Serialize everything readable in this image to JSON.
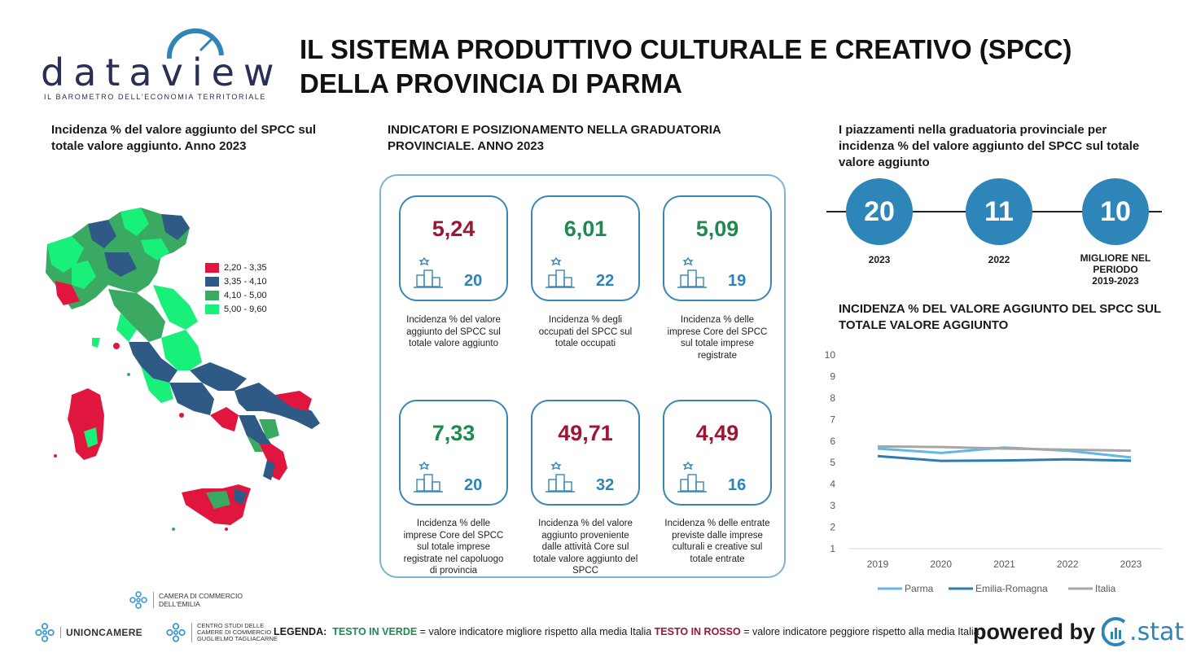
{
  "header": {
    "logo_word": "dataview",
    "logo_tagline": "IL BAROMETRO DELL'ECONOMIA TERRITORIALE",
    "title_line1": "IL SISTEMA PRODUTTIVO CULTURALE E CREATIVO (SPCC)",
    "title_line2": "DELLA PROVINCIA DI PARMA"
  },
  "map_section": {
    "title_line1": "Incidenza % del valore aggiunto del SPCC sul",
    "title_line2": "totale valore aggiunto. Anno 2023",
    "legend": [
      {
        "label": "2,20 - 3,35",
        "color": "#e0163f"
      },
      {
        "label": "3,35 - 4,10",
        "color": "#2e5a85"
      },
      {
        "label": "4,10 - 5,00",
        "color": "#3aaa63"
      },
      {
        "label": "5,00 - 9,60",
        "color": "#18f07a"
      }
    ]
  },
  "indicators": {
    "title_line1": "INDICATORI E POSIZIONAMENTO NELLA GRADUATORIA",
    "title_line2": "PROVINCIALE. ANNO 2023",
    "cards": [
      {
        "value": "5,24",
        "rank": "20",
        "status": "bad",
        "desc": [
          "Incidenza % del valore",
          "aggiunto del SPCC sul",
          "totale valore aggiunto"
        ]
      },
      {
        "value": "6,01",
        "rank": "22",
        "status": "good",
        "desc": [
          "Incidenza % degli",
          "occupati del SPCC sul",
          "totale occupati"
        ]
      },
      {
        "value": "5,09",
        "rank": "19",
        "status": "good",
        "desc": [
          "Incidenza % delle",
          "imprese Core del SPCC",
          "sul totale imprese",
          "registrate"
        ]
      },
      {
        "value": "7,33",
        "rank": "20",
        "status": "good",
        "desc": [
          "Incidenza % delle",
          "imprese Core del SPCC",
          "sul totale imprese",
          "registrate nel capoluogo",
          "di provincia"
        ]
      },
      {
        "value": "49,71",
        "rank": "32",
        "status": "bad",
        "desc": [
          "Incidenza % del valore",
          "aggiunto proveniente",
          "dalle attività Core sul",
          "totale valore aggiunto del",
          "SPCC"
        ]
      },
      {
        "value": "4,49",
        "rank": "16",
        "status": "bad",
        "desc": [
          "Incidenza % delle entrate",
          "previste dalle imprese",
          "culturali e creative sul",
          "totale entrate"
        ]
      }
    ]
  },
  "placements": {
    "title_line1": "I piazzamenti nella graduatoria provinciale per",
    "title_line2": "incidenza % del valore aggiunto del SPCC sul totale",
    "title_line3": "valore aggiunto",
    "items": [
      {
        "value": "20",
        "label": [
          "2023"
        ]
      },
      {
        "value": "11",
        "label": [
          "2022"
        ]
      },
      {
        "value": "10",
        "label": [
          "MIGLIORE NEL",
          "PERIODO",
          "2019-2023"
        ]
      }
    ]
  },
  "chart_data": {
    "type": "line",
    "title": "INCIDENZA % DEL VALORE AGGIUNTO DEL SPCC SUL TOTALE VALORE AGGIUNTO",
    "title_line1": "INCIDENZA % DEL VALORE AGGIUNTO DEL SPCC SUL",
    "title_line2": "TOTALE VALORE AGGIUNTO",
    "x": [
      "2019",
      "2020",
      "2021",
      "2022",
      "2023"
    ],
    "ylim": [
      1,
      10
    ],
    "yticks": [
      "1",
      "2",
      "3",
      "4",
      "5",
      "6",
      "7",
      "8",
      "9",
      "10"
    ],
    "grid": false,
    "legend_position": "bottom",
    "series": [
      {
        "name": "Parma",
        "color": "#63b7e6",
        "values": [
          5.65,
          5.45,
          5.7,
          5.55,
          5.24
        ]
      },
      {
        "name": "Emilia-Romagna",
        "color": "#2e7bb0",
        "values": [
          5.3,
          5.08,
          5.1,
          5.15,
          5.09
        ]
      },
      {
        "name": "Italia",
        "color": "#a6a6a6",
        "values": [
          5.75,
          5.72,
          5.65,
          5.6,
          5.55
        ]
      }
    ]
  },
  "footer": {
    "camera_line1": "CAMERA DI COMMERCIO",
    "camera_line2": "DELL'EMILIA",
    "unioncamere": "UNIONCAMERE",
    "tagliacarne_line1": "CENTRO STUDI DELLE",
    "tagliacarne_line2": "CAMERE DI COMMERCIO",
    "tagliacarne_line3": "GUGLIELMO TAGLIACARNE",
    "legend_label": "LEGENDA:",
    "legend_green": "TESTO IN VERDE",
    "legend_green_desc": " = valore indicatore migliore rispetto alla media Italia ",
    "legend_red": "TESTO IN ROSSO",
    "legend_red_desc": " = valore indicatore peggiore rispetto alla media Italia",
    "powered_by": "powered by",
    "cstat": ".stat"
  }
}
